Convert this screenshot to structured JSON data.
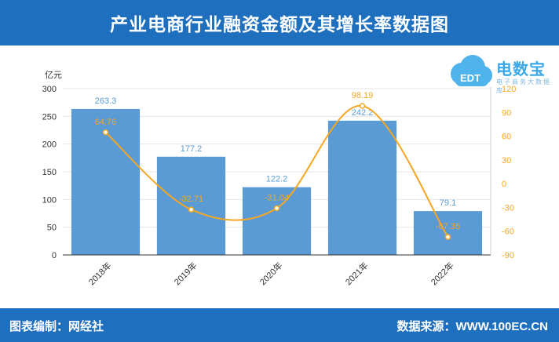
{
  "header": {
    "title": "产业电商行业融资金额及其增长率数据图"
  },
  "footer": {
    "left_text": "图表编制：网经社",
    "right_text": "数据来源：WWW.100EC.CN"
  },
  "logo": {
    "name": "电数宝",
    "sub": "电子商务大数据库",
    "badge": "EDT"
  },
  "colors": {
    "bar": "#5b9bd5",
    "line": "#f5a623",
    "header": "#1f6fbf"
  },
  "chart_data": {
    "type": "bar",
    "categories": [
      "2018年",
      "2019年",
      "2020年",
      "2021年",
      "2022年"
    ],
    "series": [
      {
        "name": "",
        "type": "bar",
        "axis": "left",
        "values": [
          263.3,
          177.2,
          122.2,
          242.2,
          79.1
        ]
      },
      {
        "name": "",
        "type": "line",
        "axis": "right",
        "values": [
          64.76,
          -32.71,
          -31.04,
          98.19,
          -67.35
        ]
      }
    ],
    "ylabel_left": "亿元",
    "ylim_left": [
      0,
      300
    ],
    "yticks_left": [
      0,
      50,
      100,
      150,
      200,
      250,
      300
    ],
    "ylim_right": [
      -90,
      120
    ],
    "yticks_right": [
      -90,
      -60,
      -30,
      0,
      30,
      60,
      90,
      120
    ],
    "grid": true
  }
}
